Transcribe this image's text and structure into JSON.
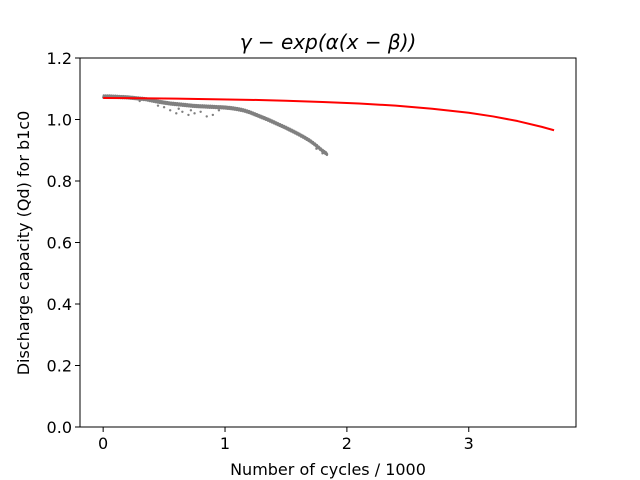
{
  "chart_data": {
    "type": "scatter",
    "title": "γ − exp(α(x − β))",
    "xlabel": "Number of cycles / 1000",
    "ylabel": "Discharge capacity (Qd) for b1c0",
    "xlim": [
      -0.19,
      3.88
    ],
    "ylim": [
      0.0,
      1.2
    ],
    "xticks": [
      0,
      1,
      2,
      3
    ],
    "yticks": [
      0.0,
      0.2,
      0.4,
      0.6,
      0.8,
      1.0,
      1.2
    ],
    "xtick_labels": [
      "0",
      "1",
      "2",
      "3"
    ],
    "ytick_labels": [
      "0.0",
      "0.2",
      "0.4",
      "0.6",
      "0.8",
      "1.0",
      "1.2"
    ],
    "grid": false,
    "series": [
      {
        "kind": "scatter",
        "color": "#808080",
        "x": [
          0.0,
          0.05,
          0.1,
          0.15,
          0.2,
          0.25,
          0.3,
          0.35,
          0.4,
          0.45,
          0.5,
          0.55,
          0.6,
          0.65,
          0.7,
          0.75,
          0.8,
          0.85,
          0.9,
          0.95,
          1.0,
          1.05,
          1.1,
          1.15,
          1.2,
          1.25,
          1.3,
          1.35,
          1.4,
          1.45,
          1.5,
          1.55,
          1.6,
          1.65,
          1.7,
          1.75,
          1.8,
          1.84
        ],
        "y": [
          1.075,
          1.075,
          1.074,
          1.073,
          1.072,
          1.07,
          1.068,
          1.066,
          1.062,
          1.058,
          1.055,
          1.052,
          1.05,
          1.048,
          1.046,
          1.044,
          1.043,
          1.042,
          1.041,
          1.04,
          1.039,
          1.037,
          1.034,
          1.03,
          1.024,
          1.016,
          1.008,
          1.0,
          0.991,
          0.982,
          0.973,
          0.963,
          0.953,
          0.942,
          0.93,
          0.915,
          0.898,
          0.887
        ],
        "scatter_x": [
          0.3,
          0.45,
          0.5,
          0.55,
          0.6,
          0.62,
          0.65,
          0.7,
          0.72,
          0.75,
          0.8,
          0.85,
          0.9,
          0.95,
          1.75,
          1.8
        ],
        "scatter_y": [
          1.06,
          1.045,
          1.04,
          1.03,
          1.02,
          1.035,
          1.025,
          1.015,
          1.03,
          1.02,
          1.025,
          1.01,
          1.015,
          1.03,
          0.905,
          0.89
        ]
      },
      {
        "kind": "line",
        "color": "#ff0000",
        "x": [
          0.0,
          0.3,
          0.6,
          0.9,
          1.2,
          1.5,
          1.8,
          2.1,
          2.4,
          2.7,
          3.0,
          3.2,
          3.4,
          3.6,
          3.7
        ],
        "y": [
          1.07,
          1.069,
          1.068,
          1.066,
          1.064,
          1.061,
          1.057,
          1.052,
          1.045,
          1.035,
          1.022,
          1.01,
          0.995,
          0.976,
          0.965
        ]
      }
    ]
  }
}
